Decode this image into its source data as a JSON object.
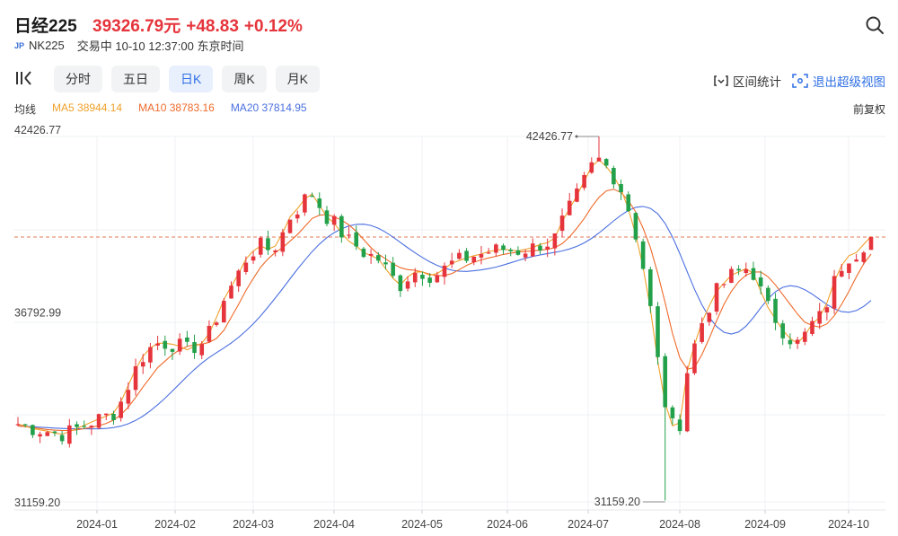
{
  "header": {
    "title": "日经225",
    "price": "39326.79元",
    "change": "+48.83",
    "change_pct": "+0.12%",
    "market_flag": "JP",
    "code": "NK225",
    "status": "交易中 10-10 12:37:00 东京时间"
  },
  "tabs": [
    {
      "label": "分时",
      "active": false
    },
    {
      "label": "五日",
      "active": false
    },
    {
      "label": "日K",
      "active": true
    },
    {
      "label": "周K",
      "active": false
    },
    {
      "label": "月K",
      "active": false
    }
  ],
  "tools": {
    "interval_stats": "区间统计",
    "exit_fullscreen": "退出超级视图",
    "adjust": "前复权"
  },
  "ma": {
    "label": "均线",
    "ma5": "MA5 38944.14",
    "ma10": "MA10 38783.16",
    "ma20": "MA20 37814.95"
  },
  "colors": {
    "up": "#e5343b",
    "down": "#23a04a",
    "ma5": "#f0a02a",
    "ma10": "#ef6a2a",
    "ma20": "#4a6fe0",
    "accent": "#2f6fe4"
  },
  "chart_data": {
    "type": "candlestick",
    "y_axis_labels": [
      "42426.77",
      "36792.99",
      "31159.20"
    ],
    "ylim": [
      31159.2,
      42426.77
    ],
    "x_labels": [
      "2024-01",
      "2024-02",
      "2024-03",
      "2024-04",
      "2024-05",
      "2024-06",
      "2024-07",
      "2024-08",
      "2024-09",
      "2024-10"
    ],
    "annotations": {
      "max": "42426.77",
      "min": "31159.20"
    },
    "last_price": 39326.79,
    "series": {
      "ma5": [
        33560,
        33500,
        33420,
        33380,
        33340,
        33280,
        33250,
        33320,
        33420,
        33520,
        33620,
        33720,
        33800,
        33900,
        34250,
        34750,
        35250,
        35650,
        35900,
        36050,
        36050,
        36020,
        35960,
        35850,
        35950,
        36050,
        36350,
        36850,
        37400,
        37800,
        38200,
        38650,
        38900,
        39050,
        38950,
        39050,
        39450,
        39950,
        40200,
        40500,
        40650,
        40300,
        39950,
        39750,
        39450,
        39200,
        39050,
        38850,
        38750,
        38650,
        38350,
        38050,
        37850,
        38100,
        38250,
        38250,
        38150,
        38200,
        38350,
        38520,
        38600,
        38680,
        38750,
        38800,
        38880,
        38920,
        38950,
        38920,
        38900,
        38950,
        39000,
        39100,
        39150,
        39300,
        39800,
        40200,
        40600,
        41050,
        41500,
        41700,
        41500,
        41200,
        40800,
        40200,
        39400,
        38400,
        37100,
        35500,
        34200,
        33500,
        33600,
        35200,
        36000,
        36700,
        37200,
        37650,
        37900,
        38150,
        38250,
        38350,
        38200,
        37650,
        37150,
        36800,
        36450,
        36200,
        36050,
        36300,
        36650,
        36850,
        37300,
        37950,
        38450,
        38750,
        38850,
        39100,
        39350
      ],
      "ma10": [
        33500,
        33480,
        33450,
        33420,
        33390,
        33370,
        33360,
        33360,
        33380,
        33420,
        33460,
        33510,
        33580,
        33680,
        33850,
        34080,
        34380,
        34700,
        35000,
        35300,
        35500,
        35700,
        35850,
        35950,
        36000,
        36020,
        36080,
        36200,
        36450,
        36850,
        37250,
        37680,
        38050,
        38400,
        38650,
        38850,
        39000,
        39200,
        39400,
        39650,
        39900,
        40000,
        40020,
        39950,
        39850,
        39700,
        39500,
        39250,
        39000,
        38800,
        38650,
        38500,
        38380,
        38320,
        38300,
        38250,
        38180,
        38130,
        38140,
        38200,
        38320,
        38450,
        38550,
        38620,
        38680,
        38730,
        38790,
        38830,
        38860,
        38880,
        38900,
        38920,
        38950,
        39000,
        39120,
        39330,
        39600,
        39900,
        40250,
        40550,
        40750,
        40800,
        40700,
        40450,
        40100,
        39600,
        39000,
        38200,
        37300,
        36350,
        35600,
        35250,
        35300,
        35700,
        36200,
        36750,
        37250,
        37650,
        37950,
        38150,
        38250,
        38250,
        38100,
        37850,
        37550,
        37250,
        36950,
        36700,
        36600,
        36550,
        36650,
        36900,
        37250,
        37650,
        38100,
        38500,
        38800
      ]
    }
  }
}
